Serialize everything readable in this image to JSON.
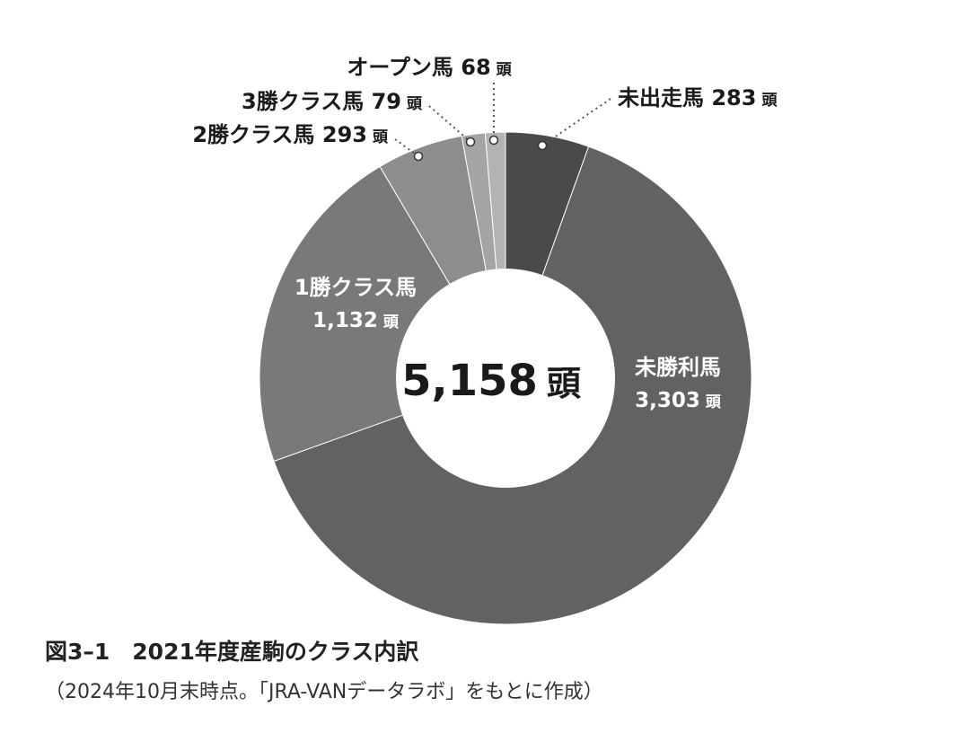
{
  "chart_data": {
    "type": "pie",
    "donut": true,
    "title": "図3–1　2021年度産駒のクラス内訳",
    "note": "（2024年10月末時点。「JRA-VANデータラボ」をもとに作成）",
    "center_label": {
      "value": "5,158",
      "unit": "頭"
    },
    "slices": [
      {
        "label": "未出走馬",
        "value": 283,
        "value_text": "283",
        "unit": "頭",
        "color": "#4a4a4a"
      },
      {
        "label": "未勝利馬",
        "value": 3303,
        "value_text": "3,303",
        "unit": "頭",
        "color": "#626262"
      },
      {
        "label": "1勝クラス馬",
        "value": 1132,
        "value_text": "1,132",
        "unit": "頭",
        "color": "#797979"
      },
      {
        "label": "2勝クラス馬",
        "value": 293,
        "value_text": "293",
        "unit": "頭",
        "color": "#8d8d8d"
      },
      {
        "label": "3勝クラス馬",
        "value": 79,
        "value_text": "79",
        "unit": "頭",
        "color": "#a4a4a4"
      },
      {
        "label": "オープン馬",
        "value": 68,
        "value_text": "68",
        "unit": "頭",
        "color": "#b3b3b3"
      }
    ],
    "colors": {
      "label_dark": "#1a1a1a",
      "label_light": "#ffffff",
      "center_fill": "#ffffff",
      "leader": "#555555"
    }
  }
}
